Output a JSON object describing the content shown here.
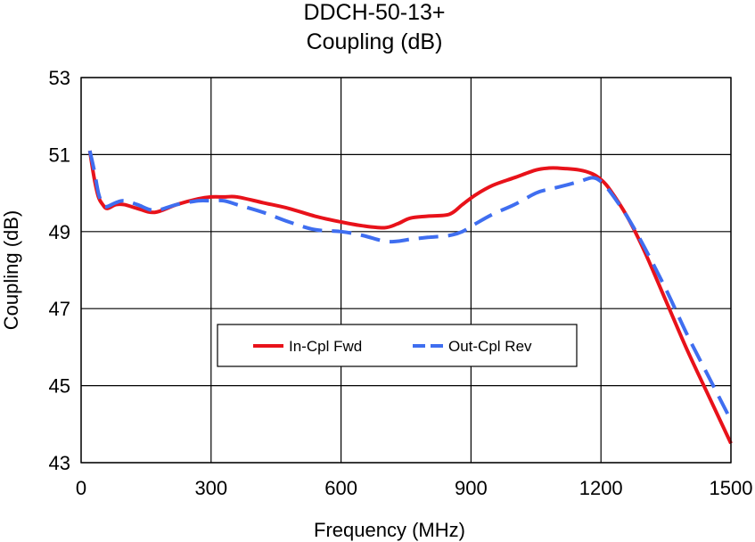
{
  "chart_data": {
    "type": "line",
    "title": "DDCH-50-13+",
    "subtitle": "Coupling (dB)",
    "xlabel": "Frequency (MHz)",
    "ylabel": "Coupling (dB)",
    "xlim": [
      0,
      1500
    ],
    "ylim": [
      43,
      53
    ],
    "x_ticks": [
      0,
      300,
      600,
      900,
      1200,
      1500
    ],
    "y_ticks": [
      43,
      45,
      47,
      49,
      51,
      53
    ],
    "x_tick_labels": [
      "0",
      "300",
      "600",
      "900",
      "1200",
      "1500"
    ],
    "y_tick_labels": [
      "43",
      "45",
      "47",
      "49",
      "51",
      "53"
    ],
    "grid": true,
    "legend_position": "center",
    "series": [
      {
        "name": "In-Cpl Fwd",
        "color": "#e8121a",
        "style": "solid",
        "x": [
          20,
          30,
          40,
          50,
          60,
          80,
          100,
          130,
          170,
          220,
          270,
          300,
          330,
          360,
          420,
          480,
          540,
          600,
          650,
          700,
          730,
          760,
          800,
          850,
          880,
          910,
          950,
          1000,
          1050,
          1080,
          1100,
          1150,
          1180,
          1200,
          1220,
          1260,
          1300,
          1350,
          1400,
          1450,
          1500
        ],
        "y": [
          51.1,
          50.4,
          49.9,
          49.7,
          49.6,
          49.7,
          49.7,
          49.6,
          49.5,
          49.7,
          49.85,
          49.9,
          49.9,
          49.9,
          49.75,
          49.6,
          49.4,
          49.25,
          49.15,
          49.1,
          49.2,
          49.35,
          49.4,
          49.45,
          49.7,
          49.95,
          50.2,
          50.4,
          50.6,
          50.65,
          50.65,
          50.6,
          50.5,
          50.35,
          50.1,
          49.4,
          48.5,
          47.2,
          45.9,
          44.7,
          43.5
        ]
      },
      {
        "name": "Out-Cpl Rev",
        "color": "#3f6ef0",
        "style": "dashed",
        "x": [
          20,
          30,
          40,
          50,
          60,
          80,
          100,
          130,
          170,
          220,
          270,
          300,
          330,
          360,
          420,
          480,
          540,
          600,
          650,
          700,
          730,
          760,
          800,
          850,
          880,
          910,
          950,
          1000,
          1050,
          1080,
          1100,
          1150,
          1180,
          1200,
          1220,
          1260,
          1300,
          1350,
          1400,
          1450,
          1500
        ],
        "y": [
          51.1,
          50.6,
          50.0,
          49.7,
          49.65,
          49.75,
          49.8,
          49.7,
          49.55,
          49.7,
          49.8,
          49.8,
          49.8,
          49.7,
          49.5,
          49.25,
          49.05,
          49.0,
          48.9,
          48.75,
          48.75,
          48.8,
          48.85,
          48.9,
          49.0,
          49.2,
          49.45,
          49.7,
          50.0,
          50.1,
          50.15,
          50.3,
          50.4,
          50.3,
          50.05,
          49.4,
          48.6,
          47.5,
          46.3,
          45.2,
          44.1
        ]
      }
    ]
  }
}
